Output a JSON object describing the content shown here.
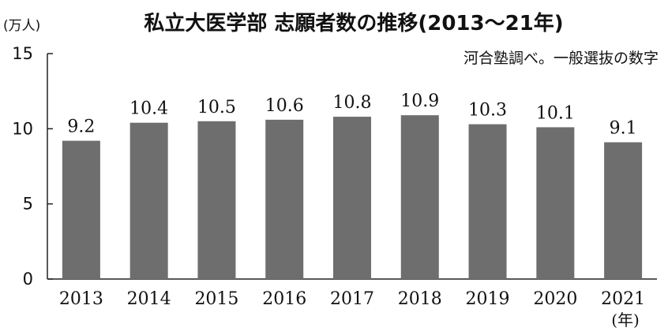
{
  "chart_data": {
    "type": "bar",
    "title": "私立大医学部 志願者数の推移(2013〜21年)",
    "ylabel": "(万人)",
    "xlabel": "(年)",
    "note": "河合塾調べ。一般選抜の数字",
    "categories": [
      "2013",
      "2014",
      "2015",
      "2016",
      "2017",
      "2018",
      "2019",
      "2020",
      "2021"
    ],
    "values": [
      9.2,
      10.4,
      10.5,
      10.6,
      10.8,
      10.9,
      10.3,
      10.1,
      9.1
    ],
    "data_labels": [
      "9.2",
      "10.4",
      "10.5",
      "10.6",
      "10.8",
      "10.9",
      "10.3",
      "10.1",
      "9.1"
    ],
    "ylim": [
      0,
      15
    ],
    "yticks": [
      "0",
      "5",
      "10",
      "15"
    ],
    "grid": false,
    "legend": "none",
    "bar_color": "#6e6e6e",
    "axis_color": "#222222"
  }
}
